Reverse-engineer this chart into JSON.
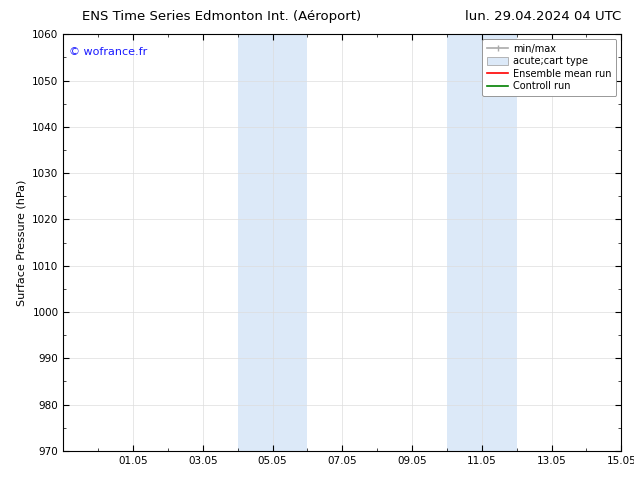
{
  "title_left": "ENS Time Series Edmonton Int. (Aéroport)",
  "title_right": "lun. 29.04.2024 04 UTC",
  "ylabel": "Surface Pressure (hPa)",
  "ylim": [
    970,
    1060
  ],
  "yticks": [
    970,
    980,
    990,
    1000,
    1010,
    1020,
    1030,
    1040,
    1050,
    1060
  ],
  "xlim": [
    0,
    16
  ],
  "xtick_labels": [
    "01.05",
    "03.05",
    "05.05",
    "07.05",
    "09.05",
    "11.05",
    "13.05",
    "15.05"
  ],
  "xtick_positions": [
    2,
    4,
    6,
    8,
    10,
    12,
    14,
    16
  ],
  "shaded_bands": [
    {
      "x_start": 5,
      "x_end": 7,
      "color": "#dce9f8"
    },
    {
      "x_start": 11,
      "x_end": 13,
      "color": "#dce9f8"
    }
  ],
  "watermark": "© wofrance.fr",
  "watermark_color": "#1a1aff",
  "legend_entries": [
    {
      "label": "min/max",
      "color": "#aaaaaa"
    },
    {
      "label": "acute;cart type",
      "color": "#dce9f8"
    },
    {
      "label": "Ensemble mean run",
      "color": "red"
    },
    {
      "label": "Controll run",
      "color": "green"
    }
  ],
  "bg_color": "#ffffff",
  "grid_color": "#dddddd",
  "title_fontsize": 9.5,
  "ylabel_fontsize": 8,
  "tick_fontsize": 7.5,
  "watermark_fontsize": 8,
  "legend_fontsize": 7
}
